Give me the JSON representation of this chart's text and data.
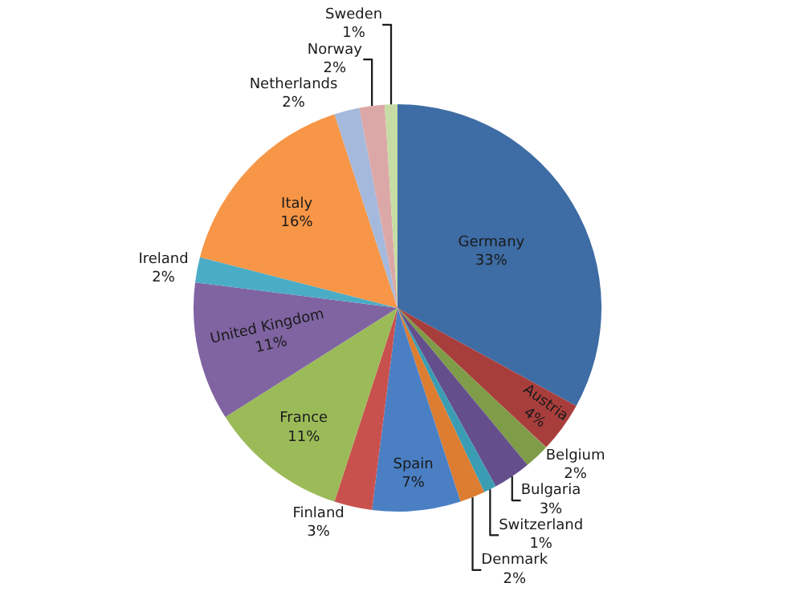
{
  "chart_data": {
    "type": "pie",
    "categories": [
      "Germany",
      "Austria",
      "Belgium",
      "Bulgaria",
      "Switzerland",
      "Denmark",
      "Spain",
      "Finland",
      "France",
      "United Kingdom",
      "Ireland",
      "Italy",
      "Netherlands",
      "Norway",
      "Sweden"
    ],
    "values": [
      33,
      4,
      2,
      3,
      1,
      2,
      7,
      3,
      11,
      11,
      2,
      16,
      2,
      2,
      1
    ],
    "value_labels": [
      "33%",
      "4%",
      "2%",
      "3%",
      "1%",
      "2%",
      "7%",
      "3%",
      "11%",
      "11%",
      "2%",
      "16%",
      "2%",
      "2%",
      "1%"
    ],
    "colors": [
      "#3e6ca4",
      "#a83e3c",
      "#7f9c48",
      "#644e8c",
      "#3b9db3",
      "#dc7d31",
      "#4a7fc4",
      "#c8514e",
      "#9bbb59",
      "#8064a2",
      "#4bacc6",
      "#f79646",
      "#a5b9dc",
      "#dca8a7",
      "#c6dca4"
    ],
    "legend": false
  }
}
